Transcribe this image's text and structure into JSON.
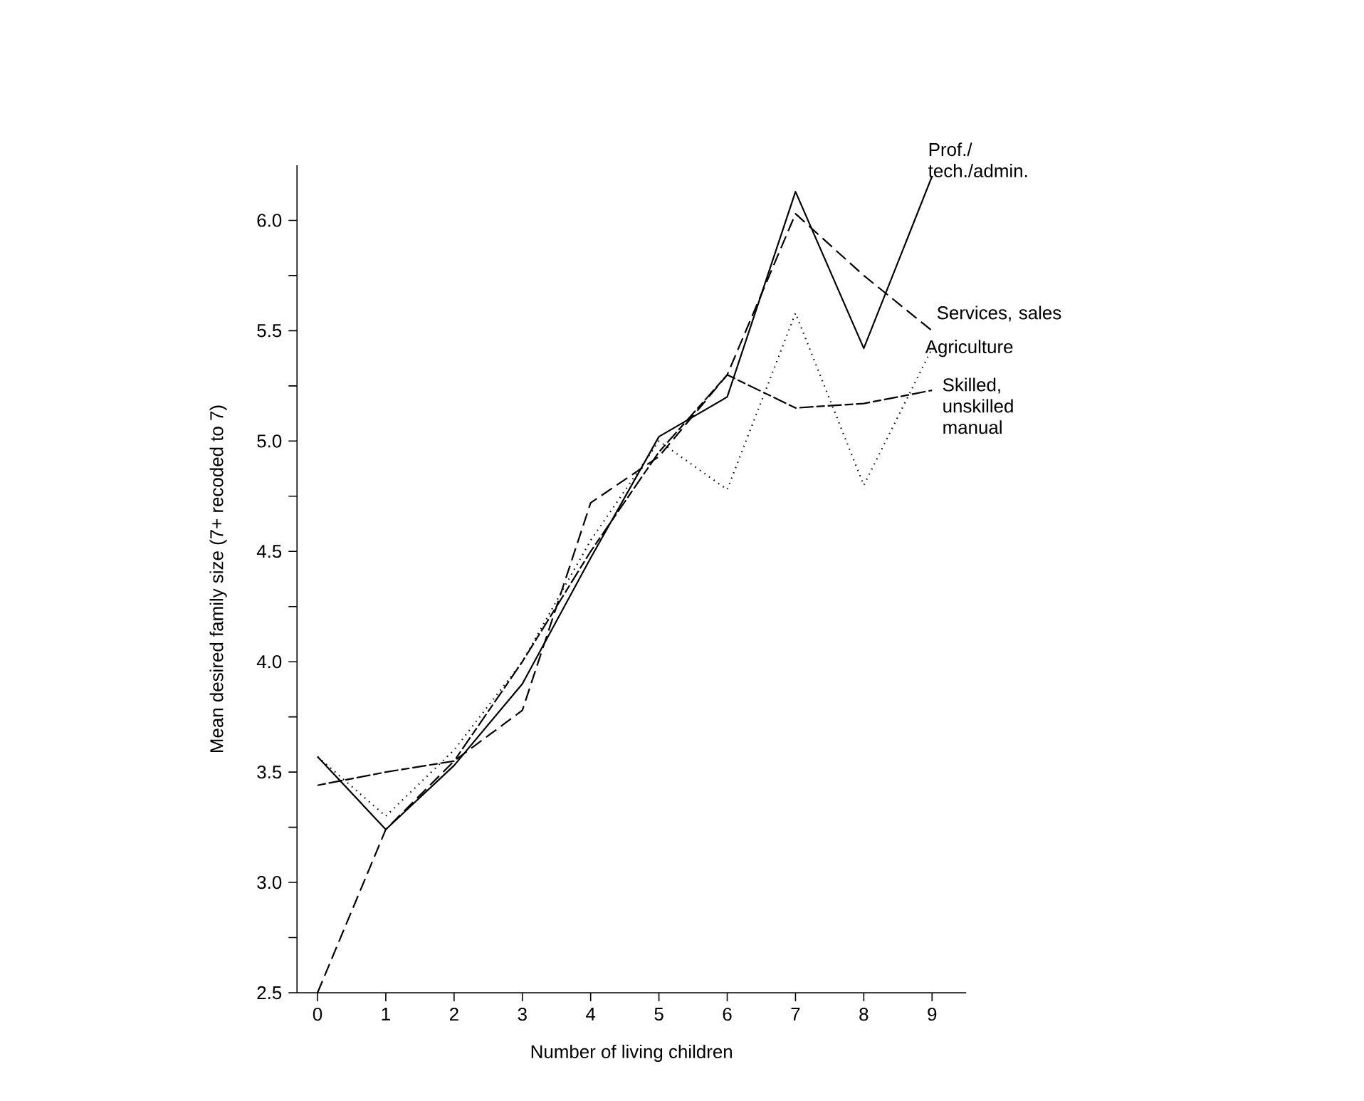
{
  "chart_data": {
    "type": "line",
    "xlabel": "Number of living children",
    "ylabel": "Mean desired family size (7+ recoded to 7)",
    "x": [
      0,
      1,
      2,
      3,
      4,
      5,
      6,
      7,
      8,
      9
    ],
    "series": [
      {
        "name": "Prof./ tech./admin.",
        "color": "#000000",
        "line_style": "solid",
        "values": [
          3.57,
          3.24,
          3.53,
          3.9,
          4.47,
          5.02,
          5.2,
          6.13,
          5.42,
          6.2
        ]
      },
      {
        "name": "Services, sales",
        "color": "#000000",
        "line_style": "dashed",
        "values": [
          2.5,
          3.24,
          3.55,
          3.78,
          4.72,
          4.93,
          5.3,
          6.03,
          5.75,
          5.5
        ]
      },
      {
        "name": "Agriculture",
        "color": "#000000",
        "line_style": "dotted",
        "values": [
          3.57,
          3.3,
          3.6,
          4.0,
          4.55,
          5.0,
          4.78,
          5.58,
          4.8,
          5.42
        ]
      },
      {
        "name": "Skilled, unskilled manual",
        "color": "#000000",
        "line_style": "dashed",
        "values": [
          3.44,
          3.5,
          3.55,
          4.0,
          4.5,
          4.95,
          5.3,
          5.15,
          5.17,
          5.23
        ]
      }
    ],
    "xlim": [
      -0.3,
      9.5
    ],
    "ylim": [
      2.5,
      6.25
    ],
    "xticks": [
      0,
      1,
      2,
      3,
      4,
      5,
      6,
      7,
      8,
      9
    ],
    "yticks": [
      2.5,
      {
        "value": 3,
        "label": "3.0"
      },
      3.5,
      {
        "value": 4,
        "label": "4.0"
      },
      4.5,
      {
        "value": 5,
        "label": "5.0"
      },
      5.5,
      {
        "value": 6,
        "label": "6.0"
      }
    ],
    "grid": false,
    "legend": false,
    "marker": "none"
  }
}
